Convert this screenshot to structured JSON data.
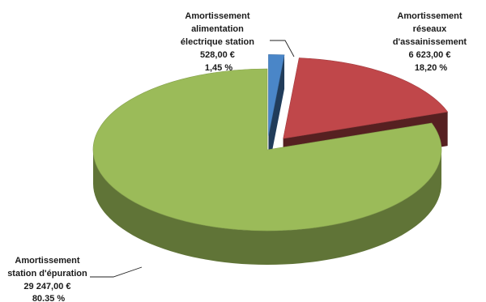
{
  "chart_data": {
    "type": "pie",
    "title": "",
    "slices": [
      {
        "name": "Amortissement alimentation électrique station",
        "label_lines": [
          "Amortissement",
          "alimentation",
          "électrique station",
          "528,00 €",
          "1,45 %"
        ],
        "value": 528.0,
        "percent": 1.45,
        "color": "#4a86c8",
        "exploded": true
      },
      {
        "name": "Amortissement réseaux d'assainissement",
        "label_lines": [
          "Amortissement",
          "réseaux",
          "d'assainissement",
          "6 623,00 €",
          "18,20 %"
        ],
        "value": 6623.0,
        "percent": 18.2,
        "color": "#c0474a",
        "exploded": true
      },
      {
        "name": "Amortissement station d'épuration",
        "label_lines": [
          "Amortissement",
          "station d'épuration",
          "29 247,00 €",
          "80.35 %"
        ],
        "value": 29247.0,
        "percent": 80.35,
        "color": "#9bbb59",
        "exploded": false
      }
    ],
    "style": "3d-exploded-pie"
  }
}
